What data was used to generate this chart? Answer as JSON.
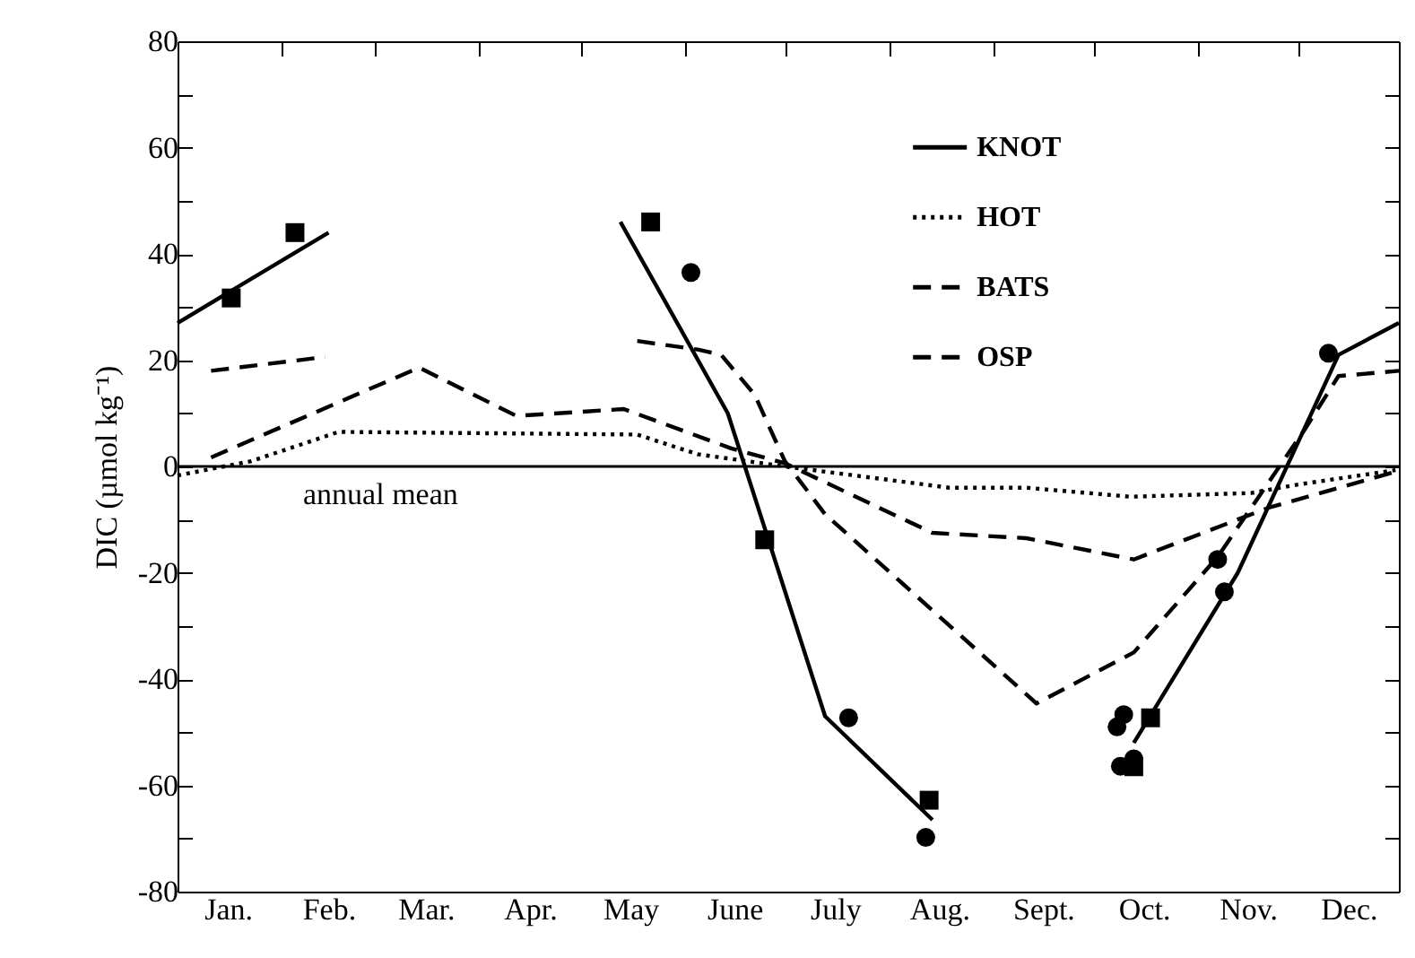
{
  "chart_data": {
    "type": "line",
    "ylabel": "DIC (µmol kg⁻¹)",
    "xlim": [
      "--01-01",
      "--12-31"
    ],
    "xticks": [
      {
        "value": "--01-01",
        "label": null
      },
      {
        "value": "--01-16",
        "label": "Jan."
      },
      {
        "value": "--02-01",
        "label": null
      },
      {
        "value": "--02-15",
        "label": "Feb."
      },
      {
        "value": "--03-01",
        "label": null
      },
      {
        "value": "--03-16",
        "label": "Mar."
      },
      {
        "value": "--04-01",
        "label": null
      },
      {
        "value": "--04-16",
        "label": "Apr."
      },
      {
        "value": "--05-01",
        "label": null
      },
      {
        "value": "--05-16",
        "label": "May"
      },
      {
        "value": "--06-01",
        "label": null
      },
      {
        "value": "--06-16",
        "label": "June"
      },
      {
        "value": "--07-01",
        "label": null
      },
      {
        "value": "--07-16",
        "label": "July"
      },
      {
        "value": "--08-01",
        "label": null
      },
      {
        "value": "--08-16",
        "label": "Aug."
      },
      {
        "value": "--09-01",
        "label": null
      },
      {
        "value": "--09-16",
        "label": "Sept."
      },
      {
        "value": "--10-01",
        "label": null
      },
      {
        "value": "--10-16",
        "label": "Oct."
      },
      {
        "value": "--11-01",
        "label": null
      },
      {
        "value": "--11-16",
        "label": "Nov."
      },
      {
        "value": "--12-01",
        "label": null
      },
      {
        "value": "--12-16",
        "label": "Dec."
      }
    ],
    "ylim": [
      -80,
      80
    ],
    "yticks": [
      -80,
      {
        "value": -70,
        "label": null
      },
      -60,
      {
        "value": -50,
        "label": null
      },
      -40,
      {
        "value": -30,
        "label": null
      },
      -20,
      {
        "value": -10,
        "label": null
      },
      0,
      {
        "value": 10,
        "label": null
      },
      20,
      {
        "value": 30,
        "label": null
      },
      40,
      {
        "value": 50,
        "label": null
      },
      60,
      {
        "value": 70,
        "label": null
      },
      80
    ],
    "legend": "top right",
    "grid": false,
    "ref_lines": [
      {
        "axis": "y",
        "value": 0,
        "label": "annual mean"
      }
    ],
    "series": [
      {
        "name": "KNOT",
        "color": "#000000",
        "line_style": "solid",
        "x": [
          "--01-01",
          "--02-15",
          "--04-01",
          "--05-13",
          "--06-14",
          "--07-13",
          "--08-14",
          "--09-16",
          "--10-13",
          "--11-13",
          "--12-13",
          "--12-31"
        ],
        "values": [
          27,
          44,
          null,
          46,
          10,
          -47,
          -66.5,
          null,
          -52,
          -20,
          21,
          27
        ]
      },
      {
        "name": "HOT",
        "color": "#000000",
        "line_style": "dotted",
        "x": [
          "--01-01",
          "--01-23",
          "--02-18",
          "--05-18",
          "--06-05",
          "--07-01",
          "--08-19",
          "--09-11",
          "--10-12",
          "--11-17",
          "--12-01",
          "--12-30"
        ],
        "values": [
          -1.7,
          1,
          6.5,
          6,
          2.3,
          0,
          -4,
          -4,
          -5.7,
          -5,
          -3.4,
          -0.7
        ]
      },
      {
        "name": "BATS",
        "color": "#000000",
        "line_style": "dashed",
        "x": [
          "--01-11",
          "--03-14",
          "--04-12",
          "--05-14",
          "--06-15",
          "--07-01",
          "--08-14",
          "--09-11",
          "--10-13",
          "--11-22",
          "--12-30"
        ],
        "values": [
          1.7,
          18.6,
          9.5,
          10.8,
          3.4,
          0.6,
          -12.5,
          -13.5,
          -17.5,
          -7.8,
          -1
        ]
      },
      {
        "name": "OSP",
        "color": "#000000",
        "line_style": "dashed",
        "x": [
          "--01-11",
          "--02-14",
          "--04-01",
          "--05-18",
          "--06-05",
          "--06-12",
          "--06-22",
          "--07-01",
          "--07-13",
          "--09-14",
          "--10-13",
          "--11-07",
          "--12-03",
          "--12-13",
          "--12-31"
        ],
        "values": [
          18,
          20.6,
          null,
          23.6,
          22,
          21,
          13.5,
          1,
          -9,
          -44.6,
          -35,
          -17,
          7,
          17,
          18
        ]
      },
      {
        "type": "scatter",
        "marker": "circle",
        "color": "#000000",
        "x": [
          "--06-03",
          "--07-20",
          "--08-12",
          "--10-08",
          "--10-10",
          "--10-09",
          "--10-13",
          "--11-07",
          "--11-09",
          "--12-10"
        ],
        "values": [
          36.5,
          -47.3,
          -69.8,
          -49,
          -46.7,
          -56.4,
          -55,
          -17.5,
          -23.6,
          21.3
        ]
      },
      {
        "type": "scatter",
        "marker": "square",
        "color": "#000000",
        "x": [
          "--01-17",
          "--02-05",
          "--05-22",
          "--06-25",
          "--08-13",
          "--10-18",
          "--10-13"
        ],
        "values": [
          31.7,
          44,
          46,
          -13.8,
          -62.8,
          -47.3,
          -56.5
        ]
      }
    ]
  }
}
